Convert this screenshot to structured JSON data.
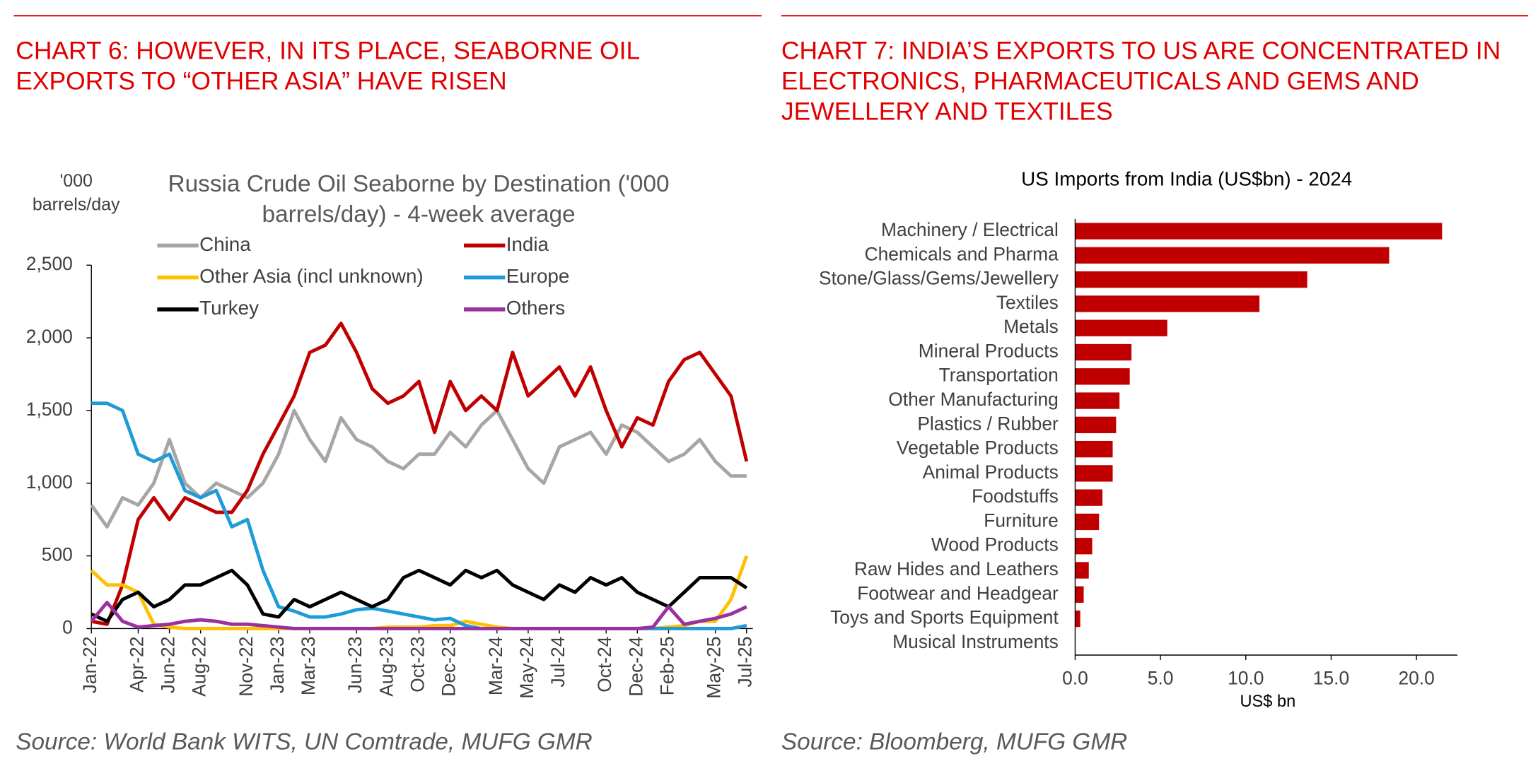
{
  "chart_data": [
    {
      "type": "line",
      "heading": "CHART 6: HOWEVER, IN ITS PLACE, SEABORNE OIL EXPORTS TO “OTHER ASIA” HAVE RISEN",
      "title": "Russia Crude Oil Seaborne by Destination ('000 barrels/day) - 4-week average",
      "y_label": "'000 barrels/day",
      "source": "Source: World Bank WITS, UN Comtrade, MUFG GMR",
      "x": [
        0,
        1,
        2,
        3,
        4,
        5,
        6,
        7,
        8,
        9,
        10,
        11,
        12,
        13,
        14,
        15,
        16,
        17,
        18,
        19,
        20,
        21,
        22,
        23,
        24,
        25,
        26,
        27,
        28,
        29,
        30,
        31,
        32,
        33,
        34,
        35,
        36,
        37,
        38,
        39,
        40,
        41,
        42
      ],
      "xlim": [
        0,
        42.4
      ],
      "xticks": [
        {
          "value": 0,
          "label": "Jan-22"
        },
        {
          "value": 3,
          "label": "Apr-22"
        },
        {
          "value": 5,
          "label": "Jun-22"
        },
        {
          "value": 7,
          "label": "Aug-22"
        },
        {
          "value": 10,
          "label": "Nov-22"
        },
        {
          "value": 12,
          "label": "Jan-23"
        },
        {
          "value": 14,
          "label": "Mar-23"
        },
        {
          "value": 17,
          "label": "Jun-23"
        },
        {
          "value": 19,
          "label": "Aug-23"
        },
        {
          "value": 21,
          "label": "Oct-23"
        },
        {
          "value": 23,
          "label": "Dec-23"
        },
        {
          "value": 26,
          "label": "Mar-24"
        },
        {
          "value": 28,
          "label": "May-24"
        },
        {
          "value": 30,
          "label": "Jul-24"
        },
        {
          "value": 33,
          "label": "Oct-24"
        },
        {
          "value": 35,
          "label": "Dec-24"
        },
        {
          "value": 37,
          "label": "Feb-25"
        },
        {
          "value": 40,
          "label": "May-25"
        },
        {
          "value": 42,
          "label": "Jul-25"
        }
      ],
      "ylim": [
        0,
        2500
      ],
      "yticks": [
        0,
        500,
        {
          "value": 1000,
          "label": "1,000"
        },
        {
          "value": 1500,
          "label": "1,500"
        },
        {
          "value": 2000,
          "label": "2,000"
        },
        {
          "value": 2500,
          "label": "2,500"
        }
      ],
      "series": [
        {
          "name": "China",
          "color": "#a6a6a6",
          "values": [
            850,
            700,
            900,
            850,
            1000,
            1300,
            1000,
            900,
            1000,
            950,
            900,
            1000,
            1200,
            1500,
            1300,
            1150,
            1450,
            1300,
            1250,
            1150,
            1100,
            1200,
            1200,
            1350,
            1250,
            1400,
            1500,
            1300,
            1100,
            1000,
            1250,
            1300,
            1350,
            1200,
            1400,
            1350,
            1250,
            1150,
            1200,
            1300,
            1150,
            1050,
            1050
          ]
        },
        {
          "name": "India",
          "color": "#c00000",
          "values": [
            50,
            30,
            300,
            750,
            900,
            750,
            900,
            850,
            800,
            800,
            950,
            1200,
            1400,
            1600,
            1900,
            1950,
            2100,
            1900,
            1650,
            1550,
            1600,
            1700,
            1350,
            1700,
            1500,
            1600,
            1500,
            1900,
            1600,
            1700,
            1800,
            1600,
            1800,
            1500,
            1250,
            1450,
            1400,
            1700,
            1850,
            1900,
            1750,
            1600,
            1150
          ]
        },
        {
          "name": "Other Asia (incl unknown)",
          "color": "#ffc000",
          "values": [
            400,
            300,
            300,
            250,
            30,
            10,
            0,
            0,
            0,
            0,
            0,
            0,
            0,
            0,
            0,
            0,
            0,
            0,
            0,
            10,
            10,
            10,
            20,
            20,
            50,
            30,
            10,
            0,
            0,
            0,
            0,
            0,
            0,
            0,
            0,
            0,
            0,
            10,
            20,
            50,
            50,
            200,
            500
          ]
        },
        {
          "name": "Europe",
          "color": "#1f9bd7",
          "values": [
            1550,
            1550,
            1500,
            1200,
            1150,
            1200,
            950,
            900,
            950,
            700,
            750,
            400,
            150,
            120,
            80,
            80,
            100,
            130,
            140,
            120,
            100,
            80,
            60,
            70,
            20,
            0,
            0,
            0,
            0,
            0,
            0,
            0,
            0,
            0,
            0,
            0,
            0,
            0,
            0,
            0,
            0,
            0,
            20
          ]
        },
        {
          "name": "Turkey",
          "color": "#000000",
          "values": [
            100,
            50,
            200,
            250,
            150,
            200,
            300,
            300,
            350,
            400,
            300,
            100,
            80,
            200,
            150,
            200,
            250,
            200,
            150,
            200,
            350,
            400,
            350,
            300,
            400,
            350,
            400,
            300,
            250,
            200,
            300,
            250,
            350,
            300,
            350,
            250,
            200,
            150,
            250,
            350,
            350,
            350,
            280
          ]
        },
        {
          "name": "Others",
          "color": "#9b30a0",
          "values": [
            50,
            180,
            50,
            10,
            20,
            30,
            50,
            60,
            50,
            30,
            30,
            20,
            10,
            0,
            0,
            0,
            0,
            0,
            0,
            0,
            0,
            0,
            0,
            0,
            0,
            0,
            0,
            0,
            0,
            0,
            0,
            0,
            0,
            0,
            0,
            0,
            10,
            150,
            30,
            50,
            70,
            100,
            150
          ]
        }
      ]
    },
    {
      "type": "barh",
      "heading": "CHART 7: INDIA’S EXPORTS TO US ARE CONCENTRATED IN ELECTRONICS, PHARMACEUTICALS AND GEMS AND JEWELLERY AND TEXTILES",
      "title": "US Imports from India (US$bn) - 2024",
      "x_label": "US$ bn",
      "source": "Source: Bloomberg, MUFG GMR",
      "categories": [
        "Machinery / Electrical",
        "Chemicals and Pharma",
        "Stone/Glass/Gems/Jewellery",
        "Textiles",
        "Metals",
        "Mineral Products",
        "Transportation",
        "Other Manufacturing",
        "Plastics / Rubber",
        "Vegetable Products",
        "Animal Products",
        "Foodstuffs",
        "Furniture",
        "Wood Products",
        "Raw Hides and Leathers",
        "Footwear and Headgear",
        "Toys and Sports Equipment",
        "Musical Instruments"
      ],
      "values": [
        21.5,
        18.4,
        13.6,
        10.8,
        5.4,
        3.3,
        3.2,
        2.6,
        2.4,
        2.2,
        2.2,
        1.6,
        1.4,
        1.0,
        0.8,
        0.5,
        0.3,
        0
      ],
      "color": "#c00000",
      "xlim": [
        0,
        22.4
      ],
      "xticks": [
        {
          "value": 0,
          "label": "0.0"
        },
        {
          "value": 5,
          "label": "5.0"
        },
        {
          "value": 10,
          "label": "10.0"
        },
        {
          "value": 15,
          "label": "15.0"
        },
        {
          "value": 20,
          "label": "20.0"
        }
      ]
    }
  ]
}
